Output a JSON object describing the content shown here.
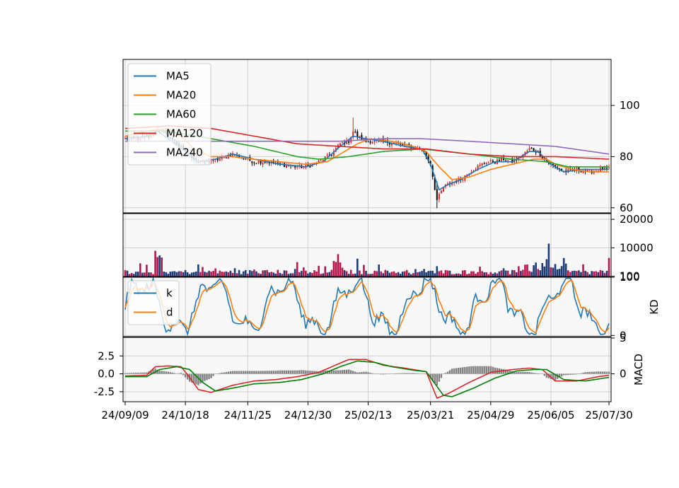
{
  "chart_data": {
    "type": "stock-candlestick-multi-panel",
    "x_tick_labels": [
      "24/09/09",
      "24/10/18",
      "24/11/25",
      "24/12/30",
      "25/02/13",
      "25/03/21",
      "25/04/29",
      "25/06/05",
      "25/07/30"
    ],
    "x_count": 226,
    "colors": {
      "up": "#d62728",
      "down": "#000000",
      "volume_up": "#b2184d",
      "volume_down": "#1f3b73",
      "macd_hist": "#808080",
      "grid": "#d0d0d0",
      "panel_bg": "#f8f8f8"
    },
    "panels": {
      "price": {
        "ylim": [
          58,
          118
        ],
        "yticks": [
          60,
          80,
          100
        ],
        "legend": [
          "MA5",
          "MA20",
          "MA60",
          "MA120",
          "MA240"
        ],
        "series_colors": {
          "MA5": "#1f77b4",
          "MA20": "#ff7f0e",
          "MA60": "#2ca02c",
          "MA120": "#d62728",
          "MA240": "#9467bd"
        },
        "close_anchors": [
          [
            0,
            87
          ],
          [
            8,
            87
          ],
          [
            12,
            88
          ],
          [
            15,
            91
          ],
          [
            18,
            89
          ],
          [
            24,
            85
          ],
          [
            28,
            82
          ],
          [
            34,
            78
          ],
          [
            38,
            78
          ],
          [
            44,
            79
          ],
          [
            50,
            81
          ],
          [
            56,
            79
          ],
          [
            60,
            78
          ],
          [
            66,
            78
          ],
          [
            72,
            77
          ],
          [
            80,
            76
          ],
          [
            84,
            76
          ],
          [
            88,
            77
          ],
          [
            92,
            79
          ],
          [
            96,
            81
          ],
          [
            100,
            85
          ],
          [
            104,
            86
          ],
          [
            106,
            90
          ],
          [
            108,
            88
          ],
          [
            112,
            86
          ],
          [
            116,
            86
          ],
          [
            120,
            86
          ],
          [
            126,
            85
          ],
          [
            132,
            84
          ],
          [
            138,
            83
          ],
          [
            142,
            77
          ],
          [
            145,
            63
          ],
          [
            148,
            68
          ],
          [
            152,
            70
          ],
          [
            156,
            71
          ],
          [
            160,
            74
          ],
          [
            164,
            76
          ],
          [
            168,
            78
          ],
          [
            172,
            78
          ],
          [
            176,
            79
          ],
          [
            180,
            78
          ],
          [
            184,
            80
          ],
          [
            188,
            83
          ],
          [
            192,
            82
          ],
          [
            196,
            78
          ],
          [
            200,
            76
          ],
          [
            204,
            74
          ],
          [
            210,
            75
          ],
          [
            216,
            74
          ],
          [
            220,
            75
          ],
          [
            225,
            75
          ]
        ],
        "ma_anchors": {
          "MA5": [
            [
              0,
              87
            ],
            [
              10,
              88
            ],
            [
              15,
              90
            ],
            [
              20,
              87
            ],
            [
              28,
              82
            ],
            [
              34,
              78
            ],
            [
              42,
              79
            ],
            [
              50,
              81
            ],
            [
              60,
              79
            ],
            [
              72,
              77
            ],
            [
              84,
              76
            ],
            [
              92,
              78
            ],
            [
              100,
              84
            ],
            [
              106,
              88
            ],
            [
              112,
              87
            ],
            [
              120,
              86
            ],
            [
              130,
              84
            ],
            [
              138,
              83
            ],
            [
              142,
              77
            ],
            [
              146,
              67
            ],
            [
              150,
              69
            ],
            [
              156,
              71
            ],
            [
              164,
              75
            ],
            [
              172,
              78
            ],
            [
              180,
              78
            ],
            [
              188,
              82
            ],
            [
              192,
              82
            ],
            [
              198,
              77
            ],
            [
              204,
              74
            ],
            [
              212,
              75
            ],
            [
              225,
              75
            ]
          ],
          "MA20": [
            [
              0,
              88
            ],
            [
              10,
              90
            ],
            [
              20,
              91
            ],
            [
              26,
              88
            ],
            [
              32,
              83
            ],
            [
              40,
              80
            ],
            [
              50,
              80
            ],
            [
              60,
              79
            ],
            [
              72,
              78
            ],
            [
              84,
              77
            ],
            [
              94,
              78
            ],
            [
              100,
              81
            ],
            [
              108,
              85
            ],
            [
              114,
              87
            ],
            [
              124,
              86
            ],
            [
              134,
              84
            ],
            [
              140,
              82
            ],
            [
              146,
              76
            ],
            [
              152,
              71
            ],
            [
              160,
              72
            ],
            [
              170,
              75
            ],
            [
              180,
              77
            ],
            [
              190,
              79
            ],
            [
              196,
              79
            ],
            [
              200,
              77
            ],
            [
              208,
              75
            ],
            [
              216,
              74
            ],
            [
              225,
              74
            ]
          ],
          "MA60": [
            [
              0,
              90
            ],
            [
              20,
              90
            ],
            [
              40,
              87
            ],
            [
              60,
              84
            ],
            [
              80,
              80
            ],
            [
              90,
              79
            ],
            [
              104,
              80
            ],
            [
              120,
              82
            ],
            [
              138,
              83
            ],
            [
              160,
              81
            ],
            [
              180,
              79
            ],
            [
              196,
              78
            ],
            [
              206,
              76
            ],
            [
              215,
              76
            ],
            [
              225,
              76
            ]
          ],
          "MA120": [
            [
              0,
              91
            ],
            [
              20,
              92
            ],
            [
              40,
              91
            ],
            [
              60,
              88
            ],
            [
              80,
              85
            ],
            [
              100,
              84
            ],
            [
              120,
              83
            ],
            [
              140,
              83
            ],
            [
              160,
              81
            ],
            [
              180,
              80
            ],
            [
              200,
              80
            ],
            [
              225,
              79
            ]
          ],
          "MA240": [
            [
              0,
              86
            ],
            [
              20,
              86
            ],
            [
              40,
              86
            ],
            [
              70,
              86
            ],
            [
              100,
              86
            ],
            [
              120,
              87
            ],
            [
              138,
              87
            ],
            [
              160,
              86
            ],
            [
              180,
              85
            ],
            [
              200,
              84
            ],
            [
              225,
              81
            ]
          ]
        }
      },
      "volume": {
        "ylim": [
          0,
          22000
        ],
        "yticks": [
          100,
          10000,
          20000
        ],
        "tick_labels": [
          "100",
          "10000",
          "20000"
        ]
      },
      "kd": {
        "ylim": [
          -2,
          100
        ],
        "yticks": [
          0,
          100
        ],
        "ylabel": "KD",
        "legend": [
          "k",
          "d"
        ],
        "series_colors": {
          "k": "#1f77b4",
          "d": "#ff7f0e"
        }
      },
      "macd": {
        "ylim": [
          -3.9,
          5.1
        ],
        "yticks_left": [
          -2.5,
          0.0,
          2.5
        ],
        "yticks_right": [
          0,
          5
        ],
        "ylabel": "MACD",
        "dif_color": "#d62728",
        "signal_color": "#008000",
        "dif_anchors": [
          [
            0,
            -0.3
          ],
          [
            10,
            -0.2
          ],
          [
            14,
            1.0
          ],
          [
            20,
            1.1
          ],
          [
            26,
            1.0
          ],
          [
            30,
            -0.5
          ],
          [
            34,
            -2.2
          ],
          [
            40,
            -2.6
          ],
          [
            50,
            -1.6
          ],
          [
            60,
            -1.0
          ],
          [
            70,
            -0.8
          ],
          [
            80,
            -0.4
          ],
          [
            90,
            0.2
          ],
          [
            100,
            1.5
          ],
          [
            104,
            2.0
          ],
          [
            112,
            2.0
          ],
          [
            120,
            1.2
          ],
          [
            130,
            0.8
          ],
          [
            140,
            0.3
          ],
          [
            145,
            -3.4
          ],
          [
            150,
            -2.8
          ],
          [
            160,
            -1.2
          ],
          [
            170,
            0.2
          ],
          [
            180,
            0.6
          ],
          [
            188,
            0.8
          ],
          [
            194,
            0.6
          ],
          [
            200,
            -1.0
          ],
          [
            210,
            -1.0
          ],
          [
            220,
            -0.4
          ],
          [
            225,
            -0.2
          ]
        ],
        "signal_anchors": [
          [
            0,
            -0.4
          ],
          [
            10,
            -0.4
          ],
          [
            16,
            0.6
          ],
          [
            24,
            1.0
          ],
          [
            30,
            0.6
          ],
          [
            36,
            -1.2
          ],
          [
            42,
            -2.4
          ],
          [
            50,
            -2.0
          ],
          [
            60,
            -1.4
          ],
          [
            72,
            -1.2
          ],
          [
            82,
            -0.8
          ],
          [
            92,
            0.0
          ],
          [
            100,
            1.0
          ],
          [
            108,
            1.8
          ],
          [
            116,
            1.6
          ],
          [
            124,
            1.0
          ],
          [
            134,
            0.5
          ],
          [
            140,
            0.3
          ],
          [
            148,
            -3.0
          ],
          [
            152,
            -3.2
          ],
          [
            162,
            -2.0
          ],
          [
            172,
            -0.6
          ],
          [
            182,
            0.4
          ],
          [
            190,
            0.6
          ],
          [
            196,
            0.6
          ],
          [
            204,
            -0.8
          ],
          [
            214,
            -1.0
          ],
          [
            225,
            -0.5
          ]
        ]
      }
    }
  }
}
